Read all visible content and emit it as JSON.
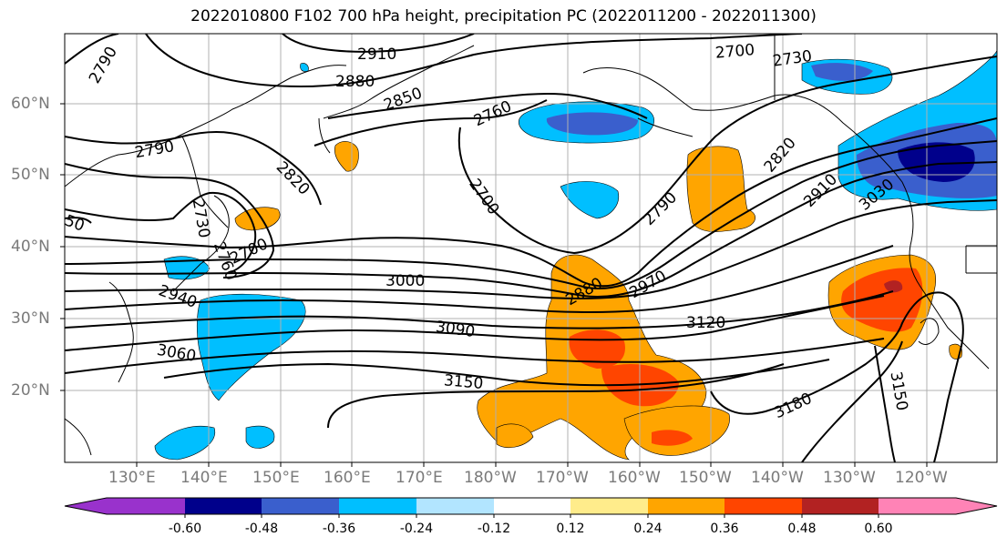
{
  "title": "2022010800 F102 700 hPa height, precipitation PC (2022011200 - 2022011300)",
  "lat_labels": [
    "60°N",
    "50°N",
    "40°N",
    "30°N",
    "20°N"
  ],
  "lon_labels": [
    "130°E",
    "140°E",
    "150°E",
    "160°E",
    "170°E",
    "180°W",
    "170°W",
    "160°W",
    "150°W",
    "140°W",
    "130°W",
    "120°W"
  ],
  "contour_labels": [
    "2790",
    "2910",
    "2880",
    "2850",
    "2760",
    "2700",
    "2730",
    "2790",
    "2820",
    "2700",
    "2820",
    "2790",
    "2910",
    "3030",
    "2730",
    "2760",
    "2700",
    "2940",
    "3000",
    "2880",
    "2970",
    "3090",
    "3120",
    "3060",
    "3150",
    "3180",
    "3150",
    "50"
  ],
  "colorbar": {
    "ticks": [
      "-0.60",
      "-0.48",
      "-0.36",
      "-0.24",
      "-0.12",
      "0.12",
      "0.24",
      "0.36",
      "0.48",
      "0.60"
    ],
    "colors": [
      "#9932cc",
      "#00008b",
      "#3a5fcd",
      "#00bfff",
      "#b2e5ff",
      "#ffffff",
      "#ffec8b",
      "#ffa500",
      "#ff4500",
      "#b22222",
      "#ff83b6"
    ]
  }
}
